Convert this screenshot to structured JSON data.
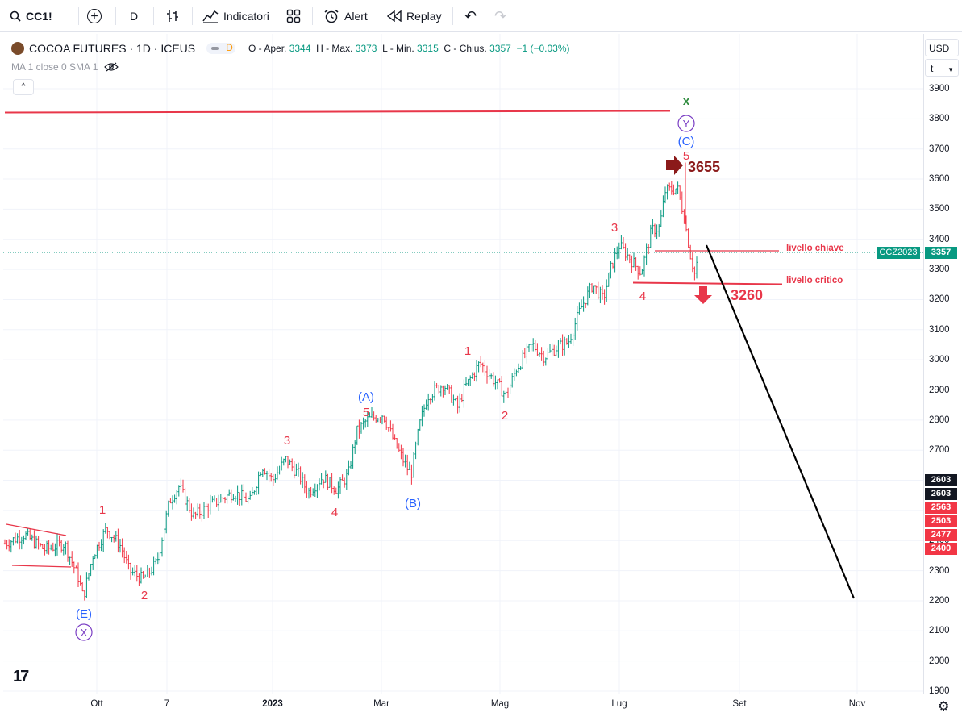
{
  "toolbar": {
    "symbol": "CC1!",
    "add_symbol_glyph": "+",
    "interval": "D",
    "indicators_label": "Indicatori",
    "alert_label": "Alert",
    "replay_label": "Replay",
    "undo_glyph": "↶",
    "redo_glyph": "↷"
  },
  "legend": {
    "title": "COCOA FUTURES · 1D · ICEUS",
    "badge": "D",
    "ohlc": {
      "o_label": "O - Aper.",
      "o": "3344",
      "h_label": "H - Max.",
      "h": "3373",
      "l_label": "L - Min.",
      "l": "3315",
      "c_label": "C - Chius.",
      "c": "3357",
      "change": "−1 (−0.03%)"
    },
    "ma": "MA 1 close 0 SMA 1",
    "collapse_glyph": "^"
  },
  "price_axis": {
    "currency": "USD",
    "scale_mode": "t",
    "ticks": [
      "3900",
      "3800",
      "3700",
      "3600",
      "3500",
      "3400",
      "3300",
      "3200",
      "3100",
      "3000",
      "2900",
      "2800",
      "2700",
      "2600",
      "2500",
      "2400",
      "2300",
      "2200",
      "2100",
      "2000",
      "1900"
    ],
    "tags": {
      "ticker_label": "CCZ2023",
      "last": "3357",
      "dark1": "2603",
      "dark2": "2603",
      "red1": "2563",
      "red2": "2503",
      "red3": "2477",
      "red4": "2400"
    }
  },
  "time_axis": {
    "ticks": [
      "Ott",
      "7",
      "2023",
      "Mar",
      "Mag",
      "Lug",
      "Set",
      "Nov"
    ]
  },
  "annotations": {
    "x_green": "x",
    "y_circle": "Y",
    "C_paren": "(C)",
    "five_top": "5",
    "price_3655": "3655",
    "three_top": "3",
    "livello_chiave": "livello chiave",
    "livello_critico": "livello critico",
    "four_top": "4",
    "price_3260": "3260",
    "one_mid": "1",
    "two_mid": "2",
    "A_paren": "(A)",
    "five_a": "5",
    "B_paren": "(B)",
    "three_left": "3",
    "four_left": "4",
    "one_left": "1",
    "two_left": "2",
    "E_paren": "(E)",
    "x_circle": "X"
  },
  "colors": {
    "up": "#089981",
    "down": "#f23645",
    "wave_red": "#e8374a",
    "wave_blue": "#2962ff",
    "dark_red": "#8b1a1a",
    "purple": "#7b3fc4",
    "green_label": "#2e8b3d"
  },
  "icons": {
    "search": "search-icon",
    "add": "plus-circle-icon",
    "bars": "bar-style-icon",
    "indicators": "indicators-icon",
    "templates": "layout-grid-icon",
    "alert": "alarm-clock-icon",
    "replay": "replay-icon",
    "settings": "gear-icon"
  },
  "footer": {
    "logo": "17",
    "gear_glyph": "⚙"
  }
}
